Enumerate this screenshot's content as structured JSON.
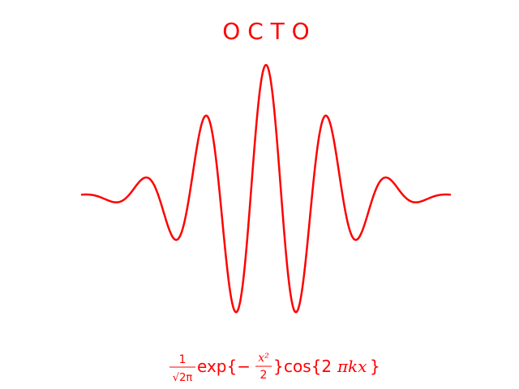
{
  "chart_data": {
    "type": "line",
    "title": "O C T O",
    "formula": {
      "frac_numerator": "1",
      "frac_denominator": "√2π",
      "exp_text": "exp{−",
      "exp_frac_numerator": "x²",
      "exp_frac_denominator": "2",
      "exp_close": "}",
      "cos_text": "cos{2",
      "cos_pi": "π",
      "cos_kx": "kx",
      "cos_close": "}"
    },
    "function": "exp(-x^2/2) * cos(2*pi*k*x)",
    "k": 1,
    "xlim": [
      -3,
      3
    ],
    "ylim": [
      -1.1,
      1.1
    ],
    "num_points": 600,
    "color": "#ff0000",
    "axis_visible": false,
    "grid": false
  }
}
